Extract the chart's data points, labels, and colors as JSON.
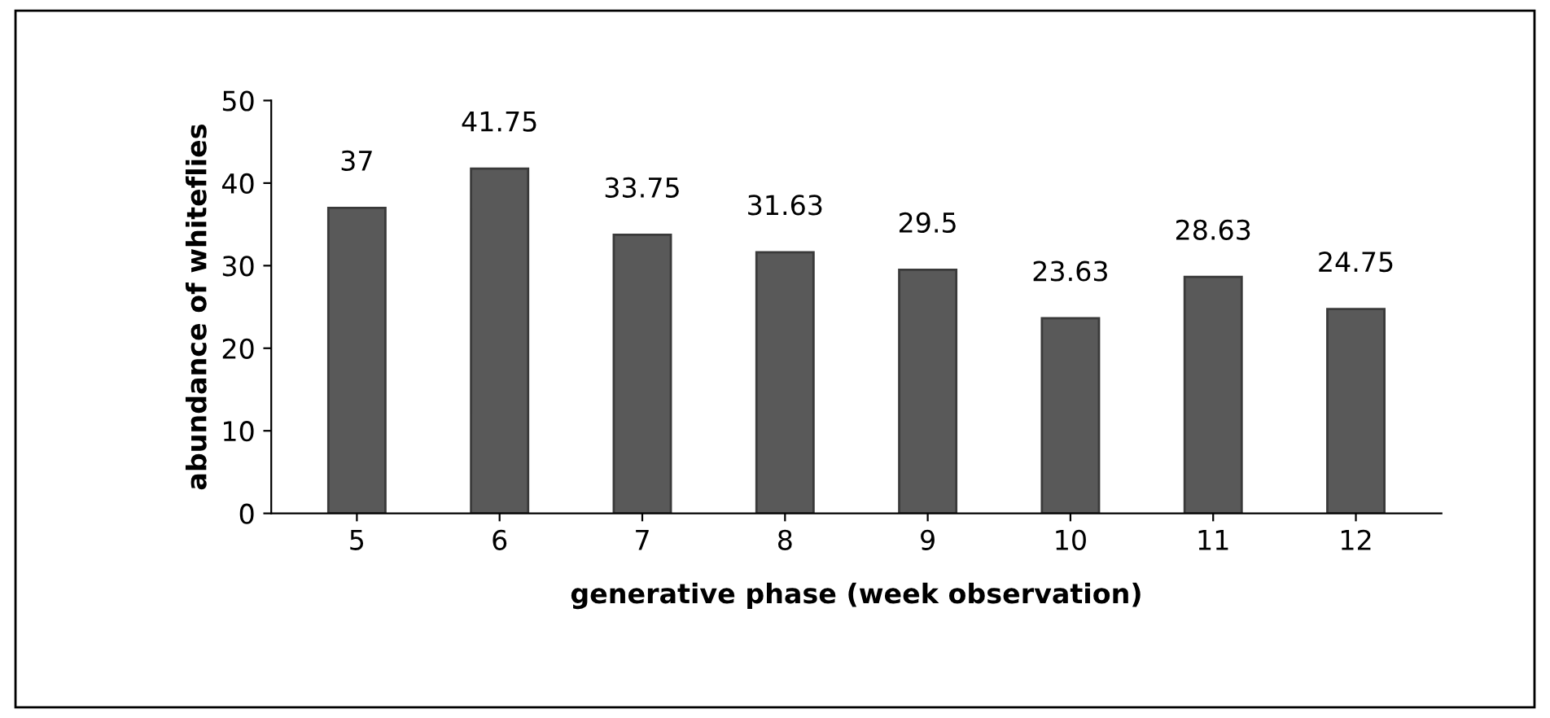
{
  "chart_data": {
    "type": "bar",
    "xlabel": "generative phase (week observation)",
    "ylabel": "abundance of whiteflies",
    "categories": [
      "5",
      "6",
      "7",
      "8",
      "9",
      "10",
      "11",
      "12"
    ],
    "values": [
      37,
      41.75,
      33.75,
      31.63,
      29.5,
      23.63,
      28.63,
      24.75
    ],
    "color": "#595959",
    "ylim": [
      0,
      50
    ],
    "yticks": [
      0,
      10,
      20,
      30,
      40,
      50
    ],
    "grid": false,
    "data_labels": true
  }
}
